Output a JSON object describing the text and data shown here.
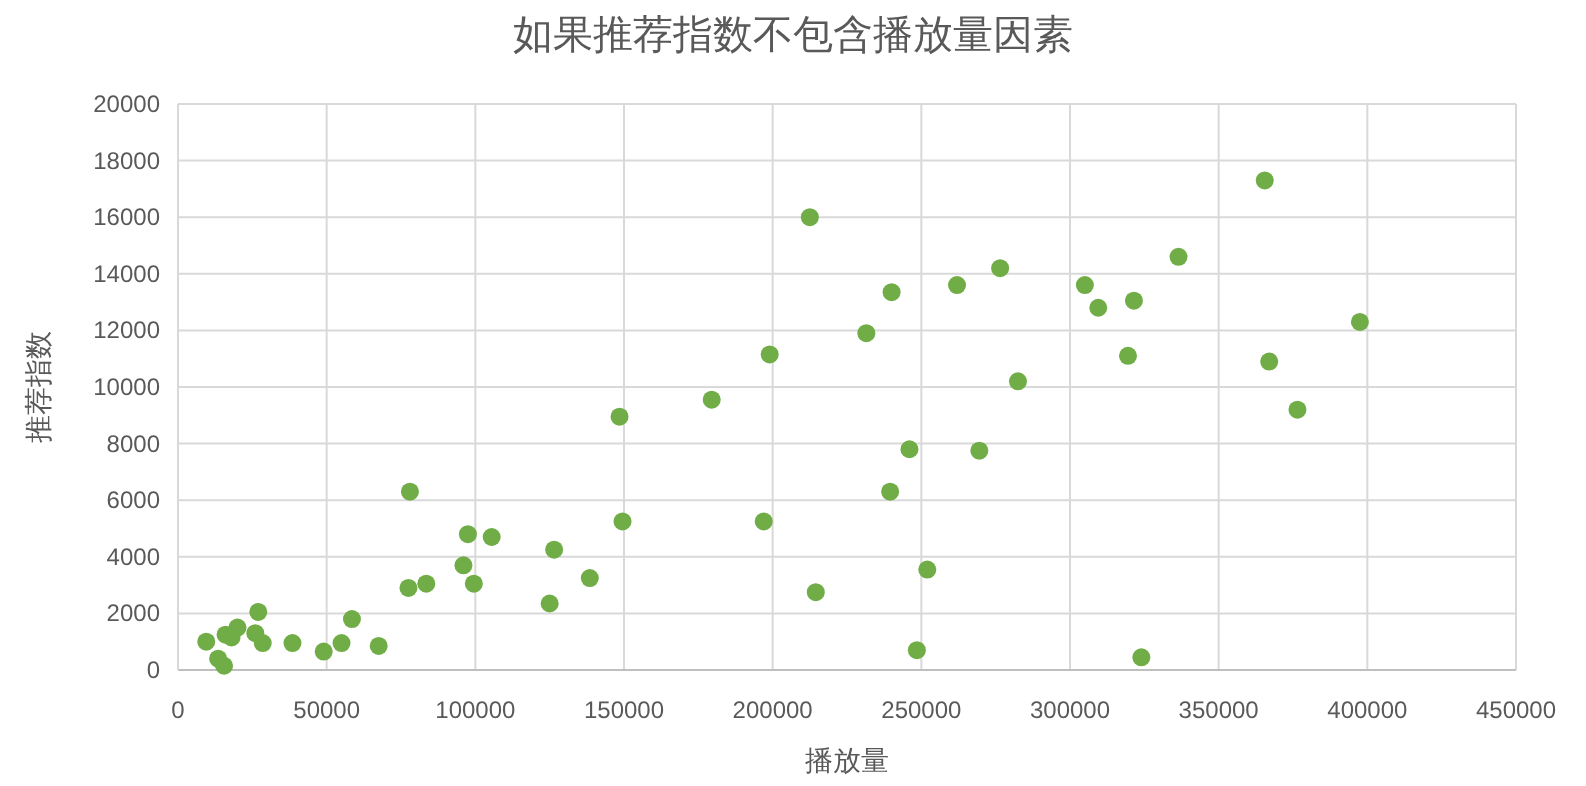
{
  "chart_data": {
    "type": "scatter",
    "title": "如果推荐指数不包含播放量因素",
    "xlabel": "播放量",
    "ylabel": "推荐指数",
    "xlim": [
      0,
      450000
    ],
    "xticks": [
      0,
      50000,
      100000,
      150000,
      200000,
      250000,
      300000,
      350000,
      400000,
      450000
    ],
    "ylim": [
      0,
      20000
    ],
    "yticks": [
      0,
      2000,
      4000,
      6000,
      8000,
      10000,
      12000,
      14000,
      16000,
      18000,
      20000
    ],
    "grid": true,
    "marker": "circle",
    "series": [
      {
        "color": "#70ad47",
        "x": [
          9500,
          13500,
          15500,
          16000,
          18000,
          20000,
          27000,
          26000,
          28500,
          38500,
          49000,
          55000,
          58500,
          67500,
          78000,
          77500,
          83500,
          96000,
          97500,
          99500,
          105500,
          125000,
          126500,
          138500,
          149500,
          212500,
          276500,
          262000,
          240000,
          305000,
          309500,
          231500,
          199000,
          179500,
          148500,
          282500,
          246000,
          269500,
          239500,
          197000,
          252000,
          214500,
          248500,
          365500,
          336500,
          321500,
          397500,
          319500,
          367000,
          376500,
          324000
        ],
        "values": [
          1000,
          400,
          150,
          1250,
          1150,
          1500,
          2050,
          1300,
          950,
          950,
          650,
          950,
          1800,
          850,
          6300,
          2900,
          3050,
          3700,
          4800,
          3050,
          4700,
          2350,
          4250,
          3250,
          5250,
          16000,
          14200,
          13600,
          13350,
          13600,
          12800,
          11900,
          11150,
          9550,
          8950,
          10200,
          7800,
          7750,
          6300,
          5250,
          3550,
          2750,
          700,
          17300,
          14600,
          13050,
          12300,
          11100,
          10900,
          9200,
          450
        ]
      }
    ]
  }
}
